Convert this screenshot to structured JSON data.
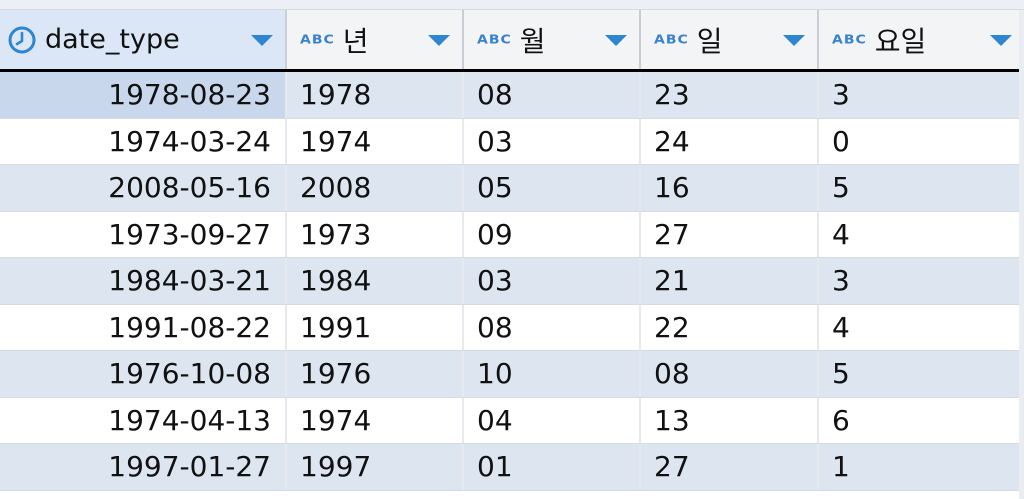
{
  "columns": [
    {
      "label": "date_type",
      "type_icon": "clock-icon"
    },
    {
      "label": "년",
      "type_icon": "ABC"
    },
    {
      "label": "월",
      "type_icon": "ABC"
    },
    {
      "label": "일",
      "type_icon": "ABC"
    },
    {
      "label": "요일",
      "type_icon": "ABC"
    }
  ],
  "rows": [
    [
      "1978-08-23",
      "1978",
      "08",
      "23",
      "3"
    ],
    [
      "1974-03-24",
      "1974",
      "03",
      "24",
      "0"
    ],
    [
      "2008-05-16",
      "2008",
      "05",
      "16",
      "5"
    ],
    [
      "1973-09-27",
      "1973",
      "09",
      "27",
      "4"
    ],
    [
      "1984-03-21",
      "1984",
      "03",
      "21",
      "3"
    ],
    [
      "1991-08-22",
      "1991",
      "08",
      "22",
      "4"
    ],
    [
      "1976-10-08",
      "1976",
      "10",
      "08",
      "5"
    ],
    [
      "1974-04-13",
      "1974",
      "04",
      "13",
      "6"
    ],
    [
      "1997-01-27",
      "1997",
      "01",
      "27",
      "1"
    ]
  ],
  "colors": {
    "accent": "#2f86d0",
    "row_alt": "#dde5f1",
    "header_bg": "#f3f4f6",
    "selected_header": "#dbe6f6"
  }
}
